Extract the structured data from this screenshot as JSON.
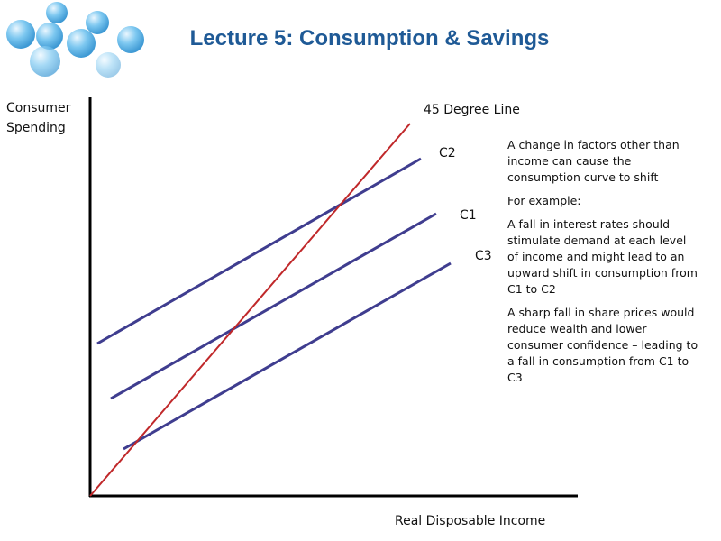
{
  "header": {
    "title": "Lecture 5: Consumption & Savings"
  },
  "diagram": {
    "y_axis_label": [
      "Consumer",
      "Spending"
    ],
    "x_axis_label": "Real Disposable Income",
    "lines": [
      {
        "label": "45 Degree Line"
      },
      {
        "label": "C2"
      },
      {
        "label": "C1"
      },
      {
        "label": "C3"
      }
    ],
    "notes": [
      "A change in factors other than income can cause the consumption curve to shift",
      "For example:",
      "A fall in interest rates should stimulate demand at each level of income and might lead to an upward shift in consumption from C1 to C2",
      "A sharp fall in share prices would reduce wealth and lower consumer confidence – leading to a fall in consumption from C1 to C3"
    ]
  }
}
